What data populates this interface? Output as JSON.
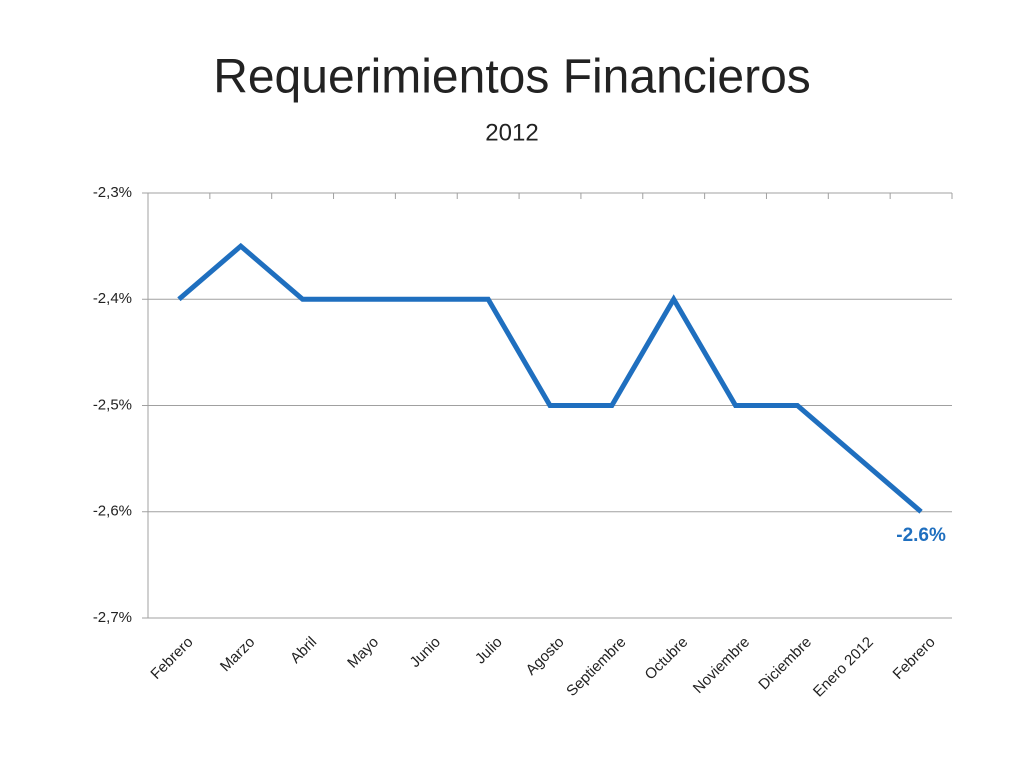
{
  "chart_data": {
    "type": "line",
    "title": "Requerimientos Financieros",
    "subtitle": "2012",
    "categories": [
      "Febrero",
      "Marzo",
      "Abril",
      "Mayo",
      "Junio",
      "Julio",
      "Agosto",
      "Septiembre",
      "Octubre",
      "Noviembre",
      "Diciembre",
      "Enero 2012",
      "Febrero"
    ],
    "series": [
      {
        "name": "Requerimientos Financieros",
        "color": "#1f6fbf",
        "values": [
          -2.4,
          -2.35,
          -2.4,
          -2.4,
          -2.4,
          -2.4,
          -2.5,
          -2.5,
          -2.4,
          -2.5,
          -2.5,
          -2.55,
          -2.6
        ],
        "value_labels": [
          null,
          null,
          null,
          null,
          null,
          null,
          null,
          null,
          null,
          null,
          null,
          null,
          "-2.6%"
        ]
      }
    ],
    "ylim": [
      -2.7,
      -2.3
    ],
    "yticks": [
      {
        "value": -2.3,
        "label": "-2,3%"
      },
      {
        "value": -2.4,
        "label": "-2,4%"
      },
      {
        "value": -2.5,
        "label": "-2,5%"
      },
      {
        "value": -2.6,
        "label": "-2,6%"
      },
      {
        "value": -2.7,
        "label": "-2,7%"
      }
    ],
    "grid": true
  }
}
